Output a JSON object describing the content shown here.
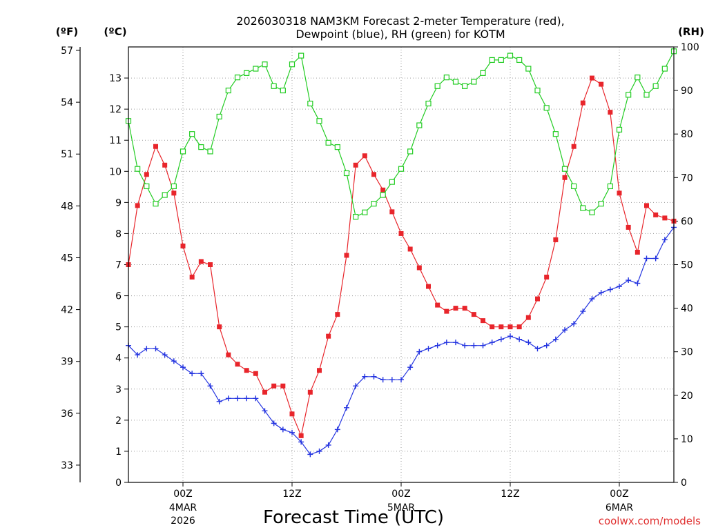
{
  "chart_data": {
    "type": "line",
    "title_line1": "2026030318 NAM3KM Forecast 2-meter Temperature (red),",
    "title_line2": "Dewpoint (blue), RH (green) for KOTM",
    "xlabel": "Forecast Time (UTC)",
    "credit": "coolwx.com/models",
    "units": {
      "fahrenheit": "(ºF)",
      "celsius": "(ºC)",
      "rh": "(RH)"
    },
    "x_range_hours": [
      0,
      60
    ],
    "celsius_range": [
      0,
      14
    ],
    "fahrenheit_range": [
      32,
      57.2
    ],
    "rh_range": [
      0,
      100
    ],
    "celsius_ticks": [
      "0",
      "1",
      "2",
      "3",
      "4",
      "5",
      "6",
      "7",
      "8",
      "9",
      "10",
      "11",
      "12",
      "13"
    ],
    "fahrenheit_ticks": [
      "33",
      "36",
      "39",
      "42",
      "45",
      "48",
      "51",
      "54",
      "57"
    ],
    "rh_ticks": [
      "0",
      "10",
      "20",
      "30",
      "40",
      "50",
      "60",
      "70",
      "80",
      "90",
      "100"
    ],
    "x_ticks": [
      {
        "hour": 6,
        "label": "00Z",
        "date": "4MAR",
        "year": "2026"
      },
      {
        "hour": 18,
        "label": "12Z",
        "date": "",
        "year": ""
      },
      {
        "hour": 30,
        "label": "00Z",
        "date": "5MAR",
        "year": ""
      },
      {
        "hour": 42,
        "label": "12Z",
        "date": "",
        "year": ""
      },
      {
        "hour": 54,
        "label": "00Z",
        "date": "6MAR",
        "year": ""
      }
    ],
    "x": [
      0,
      1,
      2,
      3,
      4,
      5,
      6,
      7,
      8,
      9,
      10,
      11,
      12,
      13,
      14,
      15,
      16,
      17,
      18,
      19,
      20,
      21,
      22,
      23,
      24,
      25,
      26,
      27,
      28,
      29,
      30,
      31,
      32,
      33,
      34,
      35,
      36,
      37,
      38,
      39,
      40,
      41,
      42,
      43,
      44,
      45,
      46,
      47,
      48,
      49,
      50,
      51,
      52,
      53,
      54,
      55,
      56,
      57,
      58,
      59,
      60
    ],
    "series": [
      {
        "name": "2-meter Temperature",
        "unit": "C",
        "color": "#e8252b",
        "marker": "filled-square",
        "values": [
          7.0,
          8.9,
          9.9,
          10.8,
          10.2,
          9.3,
          7.6,
          6.6,
          7.1,
          7.0,
          5.0,
          4.1,
          3.8,
          3.6,
          3.5,
          2.9,
          3.1,
          3.1,
          2.2,
          1.5,
          2.9,
          3.6,
          4.7,
          5.4,
          7.3,
          10.2,
          10.5,
          9.9,
          9.4,
          8.7,
          8.0,
          7.5,
          6.9,
          6.3,
          5.7,
          5.5,
          5.6,
          5.6,
          5.4,
          5.2,
          5.0,
          5.0,
          5.0,
          5.0,
          5.3,
          5.9,
          6.6,
          7.8,
          9.8,
          10.8,
          12.2,
          13.0,
          12.8,
          11.9,
          9.3,
          8.2,
          7.4,
          8.9,
          8.6,
          8.5,
          8.4
        ]
      },
      {
        "name": "Dewpoint",
        "unit": "C",
        "color": "#2333e0",
        "marker": "plus",
        "values": [
          4.4,
          4.1,
          4.3,
          4.3,
          4.1,
          3.9,
          3.7,
          3.5,
          3.5,
          3.1,
          2.6,
          2.7,
          2.7,
          2.7,
          2.7,
          2.3,
          1.9,
          1.7,
          1.6,
          1.3,
          0.9,
          1.0,
          1.2,
          1.7,
          2.4,
          3.1,
          3.4,
          3.4,
          3.3,
          3.3,
          3.3,
          3.7,
          4.2,
          4.3,
          4.4,
          4.5,
          4.5,
          4.4,
          4.4,
          4.4,
          4.5,
          4.6,
          4.7,
          4.6,
          4.5,
          4.3,
          4.4,
          4.6,
          4.9,
          5.1,
          5.5,
          5.9,
          6.1,
          6.2,
          6.3,
          6.5,
          6.4,
          7.2,
          7.2,
          7.8,
          8.2
        ]
      },
      {
        "name": "RH",
        "unit": "%",
        "color": "#22cc22",
        "marker": "open-square",
        "values": [
          83,
          72,
          68,
          64,
          66,
          68,
          76,
          80,
          77,
          76,
          84,
          90,
          93,
          94,
          95,
          96,
          91,
          90,
          96,
          98,
          87,
          83,
          78,
          77,
          71,
          61,
          62,
          64,
          66,
          69,
          72,
          76,
          82,
          87,
          91,
          93,
          92,
          91,
          92,
          94,
          97,
          97,
          98,
          97,
          95,
          90,
          86,
          80,
          72,
          68,
          63,
          62,
          64,
          68,
          81,
          89,
          93,
          89,
          91,
          95,
          99
        ]
      }
    ]
  }
}
